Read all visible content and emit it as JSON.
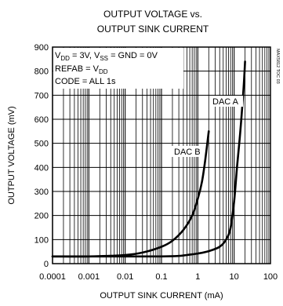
{
  "chart_data": {
    "type": "line",
    "title_line1": "OUTPUT VOLTAGE vs.",
    "title_line2": "OUTPUT SINK CURRENT",
    "xlabel": "OUTPUT SINK CURRENT (mA)",
    "ylabel": "OUTPUT VOLTAGE (mV)",
    "x_scale": "log",
    "xlim": [
      0.0001,
      100
    ],
    "ylim": [
      0,
      900
    ],
    "x_tick_labels": [
      "0.0001",
      "0.001",
      "0.01",
      "0.1",
      "1",
      "10",
      "100"
    ],
    "y_ticks": [
      0,
      100,
      200,
      300,
      400,
      500,
      600,
      700,
      800,
      900
    ],
    "grid": true,
    "conditions": {
      "line1_main": "V",
      "line1_sub1": "DD",
      "line1_mid": " = 3V, V",
      "line1_sub2": "SS",
      "line1_end": " = GND = 0V",
      "line2_main": "REFAB = V",
      "line2_sub": "DD",
      "line3": "CODE = ALL 1s"
    },
    "side_id": "MAX5812 TOC 03",
    "series": [
      {
        "name": "DAC A",
        "x": [
          0.0001,
          0.001,
          0.01,
          0.1,
          0.3,
          0.5,
          1,
          2,
          4,
          6,
          8,
          10,
          12,
          15,
          18,
          20
        ],
        "y": [
          30,
          30,
          30,
          30,
          32,
          36,
          42,
          52,
          70,
          100,
          150,
          260,
          400,
          560,
          720,
          840
        ]
      },
      {
        "name": "DAC B",
        "x": [
          0.0001,
          0.001,
          0.01,
          0.03,
          0.1,
          0.2,
          0.4,
          0.7,
          1,
          1.3,
          1.6,
          2
        ],
        "y": [
          30,
          30,
          36,
          46,
          70,
          95,
          140,
          200,
          270,
          340,
          430,
          550
        ]
      }
    ]
  }
}
